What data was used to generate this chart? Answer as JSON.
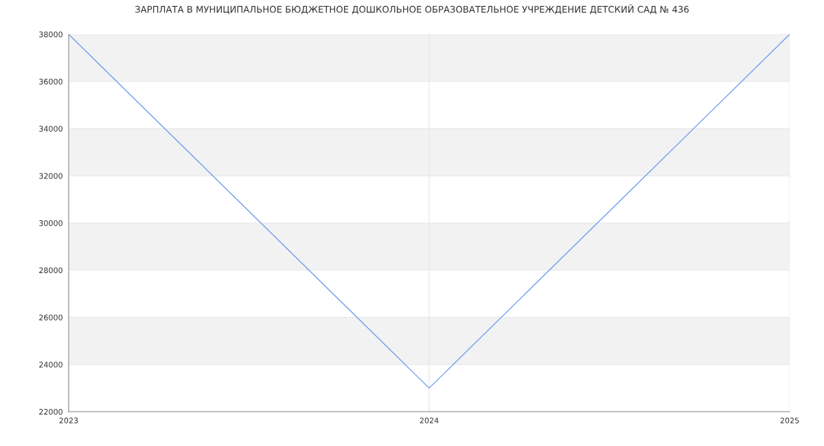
{
  "chart_data": {
    "type": "line",
    "title": "ЗАРПЛАТА В МУНИЦИПАЛЬНОЕ БЮДЖЕТНОЕ ДОШКОЛЬНОЕ ОБРАЗОВАТЕЛЬНОЕ УЧРЕЖДЕНИЕ ДЕТСКИЙ САД № 436",
    "x": [
      2023,
      2024,
      2025
    ],
    "series": [
      {
        "color": "#6f9cf0",
        "values": [
          38000,
          23000,
          38000
        ]
      }
    ],
    "xlim": [
      2023,
      2025
    ],
    "xticks": [
      2023,
      2024,
      2025
    ],
    "ylim": [
      22000,
      38000
    ],
    "yticks": [
      22000,
      24000,
      26000,
      28000,
      30000,
      32000,
      34000,
      36000,
      38000
    ],
    "bands": [
      {
        "axis": "y",
        "from": 24000,
        "to": 26000,
        "color": "#f2f2f2"
      },
      {
        "axis": "y",
        "from": 28000,
        "to": 30000,
        "color": "#f2f2f2"
      },
      {
        "axis": "y",
        "from": 32000,
        "to": 34000,
        "color": "#f2f2f2"
      },
      {
        "axis": "y",
        "from": 36000,
        "to": 38000,
        "color": "#f2f2f2"
      }
    ],
    "grid": true,
    "marker": "none",
    "line_style": "solid"
  }
}
